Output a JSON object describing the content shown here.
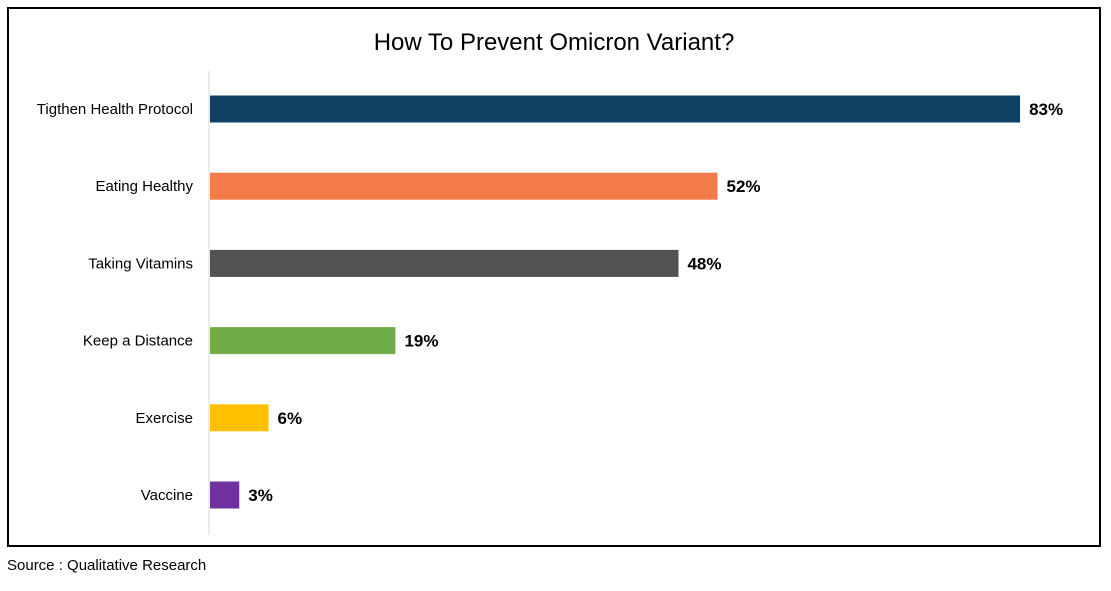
{
  "source": "Source : Qualitative Research",
  "chart_data": {
    "type": "bar",
    "orientation": "horizontal",
    "title": "How To Prevent Omicron Variant?",
    "xlabel": "",
    "ylabel": "",
    "xlim": [
      0,
      100
    ],
    "grid": false,
    "legend": "none",
    "categories": [
      "Tigthen Health Protocol",
      "Eating Healthy",
      "Taking Vitamins",
      "Keep a Distance",
      "Exercise",
      "Vaccine"
    ],
    "values": [
      83,
      52,
      48,
      19,
      6,
      3
    ],
    "data_labels": [
      "83%",
      "52%",
      "48%",
      "19%",
      "6%",
      "3%"
    ],
    "colors": [
      "#0e4163",
      "#f47b4a",
      "#525252",
      "#70ad47",
      "#ffc000",
      "#7030a0"
    ]
  }
}
